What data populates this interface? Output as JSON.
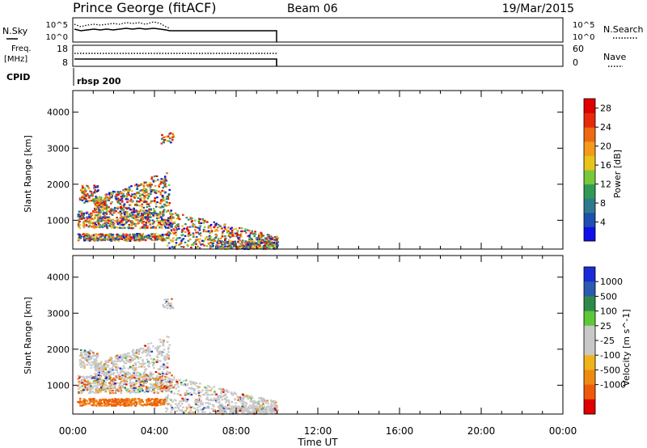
{
  "header": {
    "title": "Prince George (fitACF)",
    "beam": "Beam 06",
    "date": "19/Mar/2015"
  },
  "noise_panel": {
    "left_label": "N.Sky",
    "right_label": "N.Search",
    "left_ticks": [
      "10^5",
      "10^0"
    ],
    "right_ticks": [
      "10^5",
      "10^0"
    ]
  },
  "freq_panel": {
    "left_label_line1": "Freq.",
    "left_label_line2": "[MHz]",
    "left_ticks": [
      "18",
      "8"
    ],
    "right_ticks": [
      "60",
      "0"
    ],
    "right_label": "Nave"
  },
  "cpid_panel": {
    "label": "CPID",
    "value": "rbsp 200"
  },
  "colors": {
    "power_scale": [
      "#1010e8",
      "#1f4fb0",
      "#2e7a8c",
      "#2f9a55",
      "#78c83a",
      "#e8c31a",
      "#f39a1a",
      "#ee6a12",
      "#e82a0c",
      "#e00000"
    ],
    "velocity_scale": [
      "#1a2bd8",
      "#2a5bb0",
      "#2f8a4a",
      "#5ec83a",
      "#c8c8c8",
      "#c8c8c8",
      "#f0b31a",
      "#ee8a12",
      "#ee5a0a",
      "#e00000"
    ]
  },
  "chart_data": [
    {
      "type": "heatmap",
      "name": "power",
      "ylabel": "Slant Range [km]",
      "yticks": [
        "1000",
        "2000",
        "3000",
        "4000"
      ],
      "ylim": [
        200,
        4600
      ],
      "xlim": [
        0,
        24
      ],
      "colorbar": {
        "label": "Power [dB]",
        "ticks": [
          "4",
          "8",
          "12",
          "16",
          "20",
          "24",
          "28"
        ],
        "range": [
          0,
          30
        ]
      }
    },
    {
      "type": "heatmap",
      "name": "velocity",
      "ylabel": "Slant Range [km]",
      "yticks": [
        "1000",
        "2000",
        "3000",
        "4000"
      ],
      "ylim": [
        200,
        4600
      ],
      "xlim": [
        0,
        24
      ],
      "xlabel": "Time UT",
      "xticks": [
        "00:00",
        "04:00",
        "08:00",
        "12:00",
        "16:00",
        "20:00",
        "00:00"
      ],
      "colorbar": {
        "label": "Velocity [m s^-1]",
        "ticks": [
          "1000",
          "500",
          "100",
          "25",
          "-25",
          "-100",
          "-500",
          "-1000"
        ]
      }
    }
  ]
}
